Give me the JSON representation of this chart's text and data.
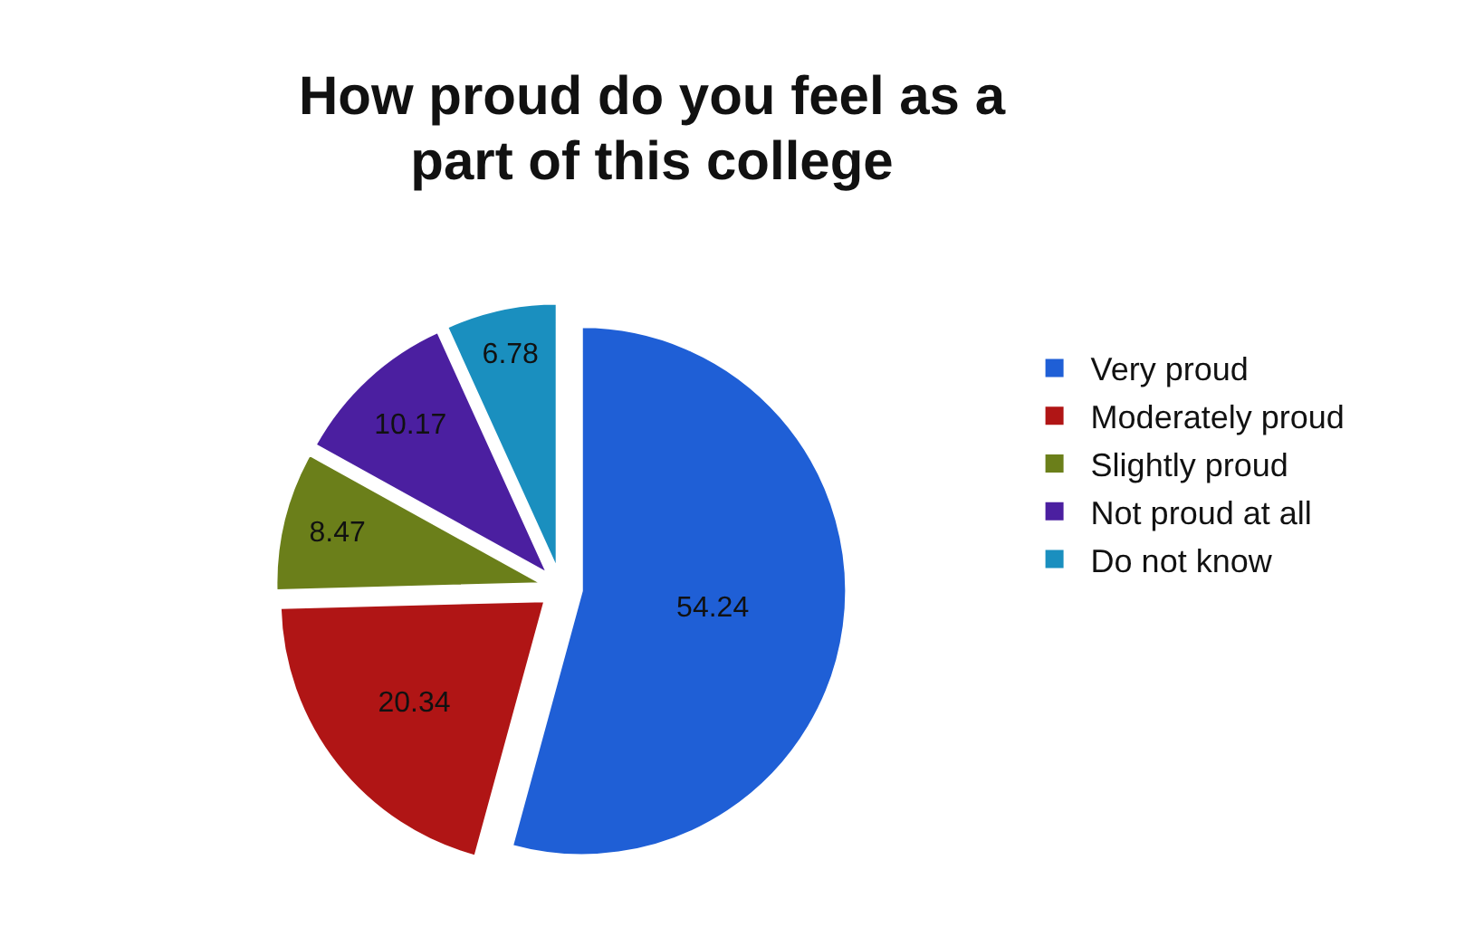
{
  "chart_data": {
    "type": "pie",
    "title": "How proud do you feel as a part of this college",
    "categories": [
      "Very proud",
      "Moderately proud",
      "Slightly proud",
      "Not proud at all",
      "Do not know"
    ],
    "values": [
      54.24,
      20.34,
      8.47,
      10.17,
      6.78
    ],
    "colors": [
      "#1f5fd6",
      "#b01515",
      "#6b7f1a",
      "#4b1fa0",
      "#1a8fbf"
    ],
    "data_labels": true,
    "legend": "right"
  }
}
